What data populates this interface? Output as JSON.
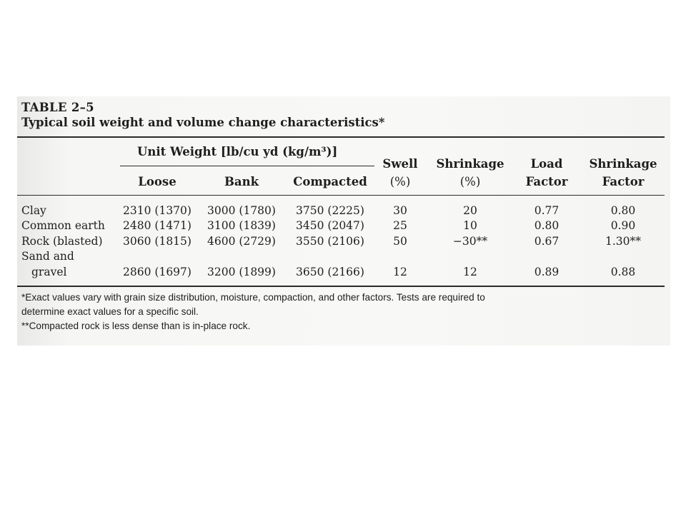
{
  "table": {
    "number": "TABLE 2–5",
    "caption": "Typical soil weight and volume change characteristics*",
    "headers": {
      "unit_weight": "Unit Weight [lb/cu yd (kg/m³)]",
      "loose": "Loose",
      "bank": "Bank",
      "compacted": "Compacted",
      "swell": [
        "Swell",
        "(%)"
      ],
      "shrinkage": [
        "Shrinkage",
        "(%)"
      ],
      "load_factor": [
        "Load",
        "Factor"
      ],
      "shrinkage_factor": [
        "Shrinkage",
        "Factor"
      ]
    },
    "rows": [
      {
        "material": [
          "Clay"
        ],
        "loose": "2310 (1370)",
        "bank": "3000 (1780)",
        "compacted": "3750 (2225)",
        "swell": "30",
        "shrinkage": "20",
        "load_factor": "0.77",
        "shrinkage_factor": "0.80"
      },
      {
        "material": [
          "Common earth"
        ],
        "loose": "2480 (1471)",
        "bank": "3100 (1839)",
        "compacted": "3450 (2047)",
        "swell": "25",
        "shrinkage": "10",
        "load_factor": "0.80",
        "shrinkage_factor": "0.90"
      },
      {
        "material": [
          "Rock (blasted)"
        ],
        "loose": "3060 (1815)",
        "bank": "4600 (2729)",
        "compacted": "3550 (2106)",
        "swell": "50",
        "shrinkage": "−30**",
        "load_factor": "0.67",
        "shrinkage_factor": "1.30**"
      },
      {
        "material": [
          "Sand and",
          "gravel"
        ],
        "loose": "2860 (1697)",
        "bank": "3200 (1899)",
        "compacted": "3650 (2166)",
        "swell": "12",
        "shrinkage": "12",
        "load_factor": "0.89",
        "shrinkage_factor": "0.88"
      }
    ],
    "footnotes": [
      "*Exact values vary with grain size distribution, moisture, compaction, and other factors. Tests are required to",
      "determine exact values for a specific soil.",
      "**Compacted rock is less dense than is in-place rock."
    ]
  }
}
